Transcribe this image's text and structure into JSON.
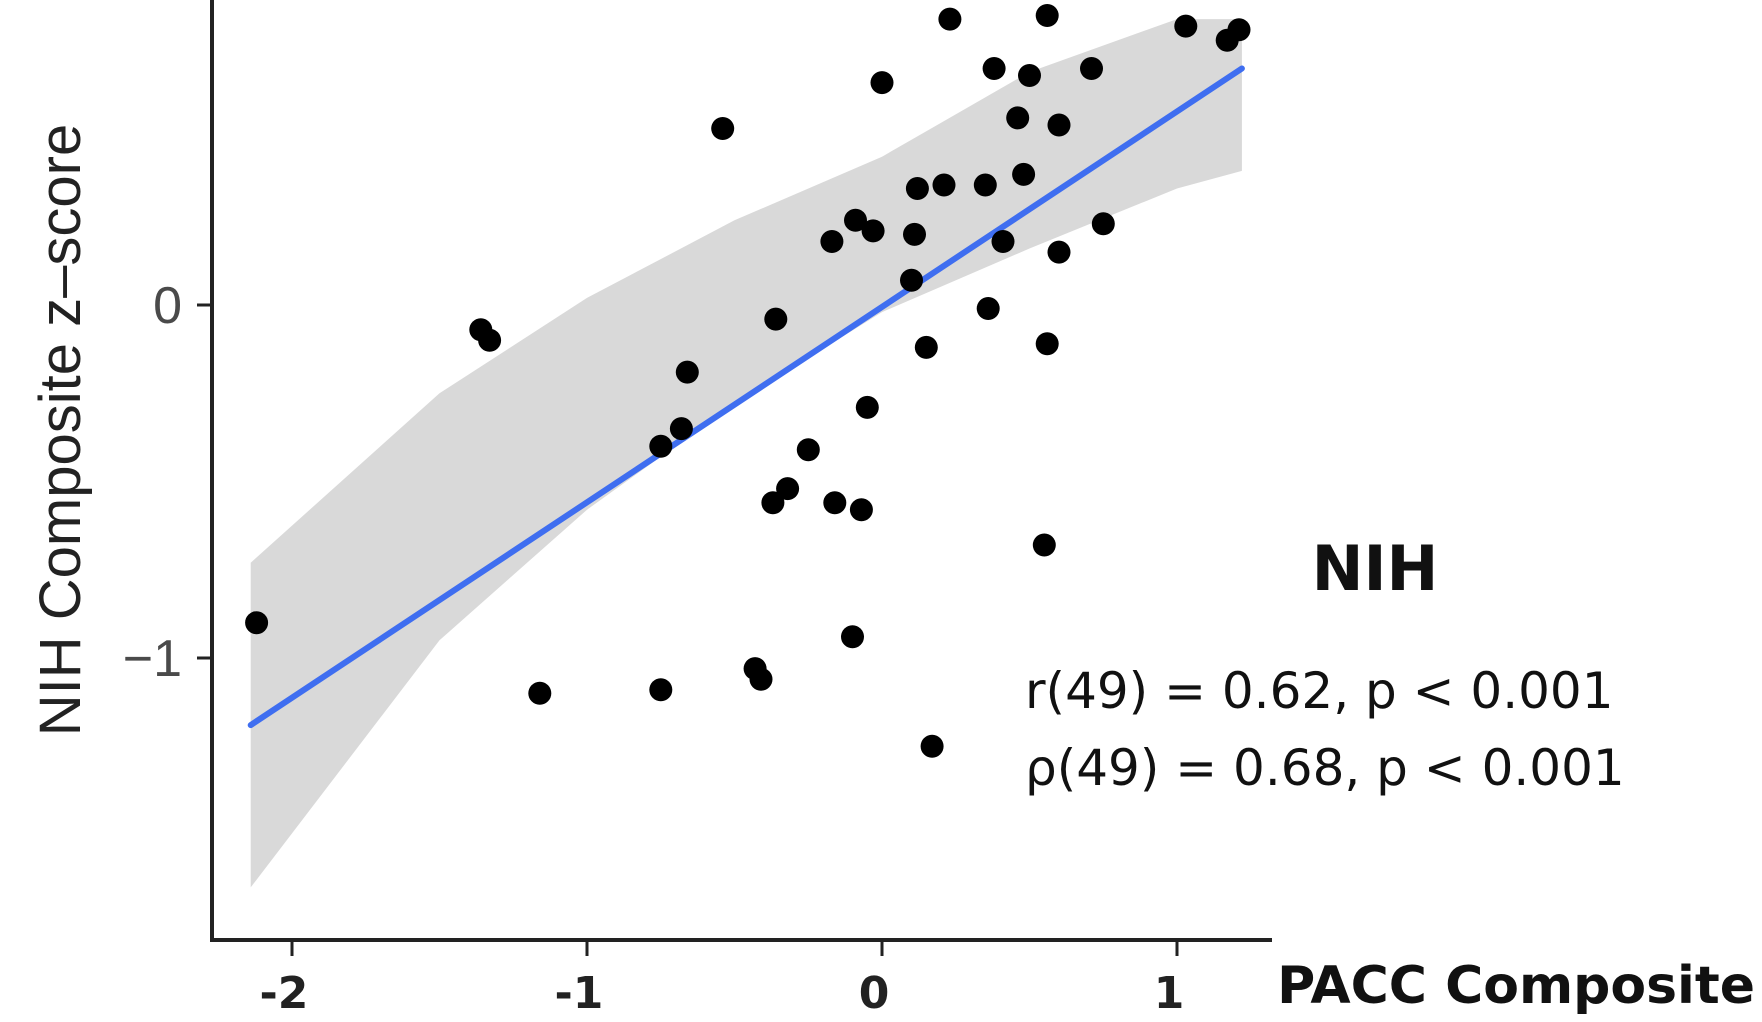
{
  "chart_data": {
    "type": "scatter",
    "title": "",
    "xlabel": "PACC Composite",
    "ylabel": "NIH Composite z–score",
    "xlim": [
      -2.3,
      1.3
    ],
    "ylim": [
      -1.8,
      0.85
    ],
    "x_ticks": [
      {
        "value": -2,
        "label": "-2"
      },
      {
        "value": -1,
        "label": "-1"
      },
      {
        "value": 0,
        "label": "0"
      },
      {
        "value": 1,
        "label": "1"
      }
    ],
    "y_ticks": [
      {
        "value": 0,
        "label": "0"
      },
      {
        "value": -1,
        "label": "−1"
      }
    ],
    "points": [
      {
        "x": 0.23,
        "y": 0.81
      },
      {
        "x": 0.56,
        "y": 0.82
      },
      {
        "x": 1.03,
        "y": 0.79
      },
      {
        "x": 1.17,
        "y": 0.75
      },
      {
        "x": 1.21,
        "y": 0.78
      },
      {
        "x": 0.0,
        "y": 0.63
      },
      {
        "x": 0.38,
        "y": 0.67
      },
      {
        "x": 0.5,
        "y": 0.65
      },
      {
        "x": 0.71,
        "y": 0.67
      },
      {
        "x": 0.46,
        "y": 0.53
      },
      {
        "x": 0.6,
        "y": 0.51
      },
      {
        "x": -0.54,
        "y": 0.5
      },
      {
        "x": 0.48,
        "y": 0.37
      },
      {
        "x": 0.35,
        "y": 0.34
      },
      {
        "x": 0.21,
        "y": 0.34
      },
      {
        "x": 0.12,
        "y": 0.33
      },
      {
        "x": 0.75,
        "y": 0.23
      },
      {
        "x": -0.09,
        "y": 0.24
      },
      {
        "x": -0.03,
        "y": 0.21
      },
      {
        "x": 0.11,
        "y": 0.2
      },
      {
        "x": -0.17,
        "y": 0.18
      },
      {
        "x": 0.41,
        "y": 0.18
      },
      {
        "x": 0.6,
        "y": 0.15
      },
      {
        "x": 0.1,
        "y": 0.07
      },
      {
        "x": 0.36,
        "y": -0.01
      },
      {
        "x": -0.36,
        "y": -0.04
      },
      {
        "x": -1.36,
        "y": -0.07
      },
      {
        "x": -1.33,
        "y": -0.1
      },
      {
        "x": 0.15,
        "y": -0.12
      },
      {
        "x": 0.56,
        "y": -0.11
      },
      {
        "x": -0.66,
        "y": -0.19
      },
      {
        "x": -0.05,
        "y": -0.29
      },
      {
        "x": -0.68,
        "y": -0.35
      },
      {
        "x": -0.75,
        "y": -0.4
      },
      {
        "x": -0.25,
        "y": -0.41
      },
      {
        "x": -0.32,
        "y": -0.52
      },
      {
        "x": -0.37,
        "y": -0.56
      },
      {
        "x": -0.16,
        "y": -0.56
      },
      {
        "x": -0.07,
        "y": -0.58
      },
      {
        "x": 0.55,
        "y": -0.68
      },
      {
        "x": -0.1,
        "y": -0.94
      },
      {
        "x": -2.12,
        "y": -0.9
      },
      {
        "x": -1.16,
        "y": -1.1
      },
      {
        "x": -0.75,
        "y": -1.09
      },
      {
        "x": -0.43,
        "y": -1.03
      },
      {
        "x": -0.41,
        "y": -1.06
      },
      {
        "x": 0.17,
        "y": -1.25
      }
    ],
    "fit_line": {
      "x": [
        -2.14,
        1.22
      ],
      "y": [
        -1.19,
        0.67
      ],
      "color": "#3f6ef0"
    },
    "confidence_band": {
      "x": [
        -2.14,
        -1.5,
        -1.0,
        -0.5,
        0.0,
        0.5,
        1.0,
        1.22
      ],
      "upper": [
        -0.73,
        -0.25,
        0.02,
        0.24,
        0.42,
        0.66,
        0.81,
        0.81
      ],
      "lower": [
        -1.65,
        -0.95,
        -0.58,
        -0.28,
        -0.02,
        0.16,
        0.33,
        0.38
      ],
      "color": "#d9d9d9"
    },
    "point_color": "#000000",
    "grid": false,
    "annotations": {
      "group": "NIH",
      "pearson": "r(49) = 0.62, p < 0.001",
      "spearman": "ρ(49) = 0.68, p < 0.001"
    }
  }
}
